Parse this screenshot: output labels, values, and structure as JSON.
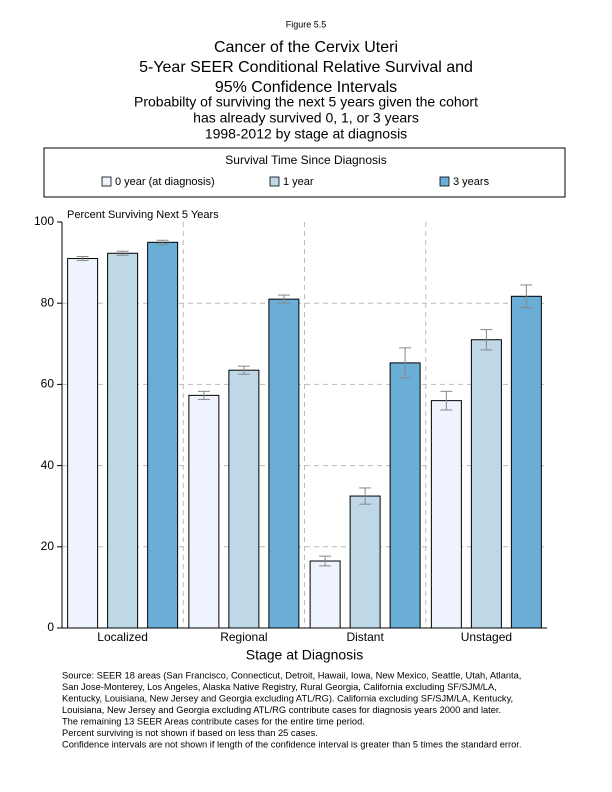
{
  "chart_data": {
    "type": "bar",
    "figure_label": "Figure 5.5",
    "title": [
      "Cancer of the Cervix Uteri",
      "5-Year SEER Conditional Relative Survival and",
      "95% Confidence Intervals"
    ],
    "subtitle": [
      "Probabilty of surviving the next 5 years given the cohort",
      "has already survived 0, 1, or 3 years",
      "1998-2012 by stage at diagnosis"
    ],
    "legend_title": "Survival Time Since Diagnosis",
    "y_label": "Percent Surviving Next 5 Years",
    "x_label": "Stage at Diagnosis",
    "categories": [
      "Localized",
      "Regional",
      "Distant",
      "Unstaged"
    ],
    "series": [
      {
        "name": "0 year (at diagnosis)",
        "color": "#eef3fd",
        "values": [
          91,
          57.3,
          16.5,
          56
        ],
        "errors": [
          0.5,
          1,
          1.2,
          2.3
        ]
      },
      {
        "name": "1 year",
        "color": "#bfd8e7",
        "values": [
          92.3,
          63.5,
          32.5,
          71
        ],
        "errors": [
          0.5,
          1,
          2,
          2.5
        ]
      },
      {
        "name": "3 years",
        "color": "#6aaed8",
        "values": [
          95,
          81,
          65.3,
          81.7
        ],
        "errors": [
          0.5,
          1,
          3.7,
          2.8
        ]
      }
    ],
    "ylim": [
      0,
      100
    ],
    "yticks": [
      0,
      20,
      40,
      60,
      80,
      100
    ],
    "grid": true,
    "notes": [
      "Source:  SEER 18 areas (San Francisco, Connecticut, Detroit, Hawaii, Iowa, New Mexico, Seattle, Utah, Atlanta,",
      "San Jose-Monterey, Los Angeles, Alaska Native Registry, Rural Georgia, California excluding SF/SJM/LA,",
      "Kentucky, Louisiana, New Jersey and Georgia excluding ATL/RG). California excluding SF/SJM/LA, Kentucky,",
      "Louisiana, New Jersey and Georgia excluding ATL/RG contribute cases for diagnosis years 2000 and later.",
      "The remaining 13 SEER Areas contribute cases for the entire time period.",
      "Percent surviving is not shown if based on less than 25 cases.",
      "Confidence intervals are not shown if length of the confidence interval is greater than 5 times the standard error."
    ]
  }
}
